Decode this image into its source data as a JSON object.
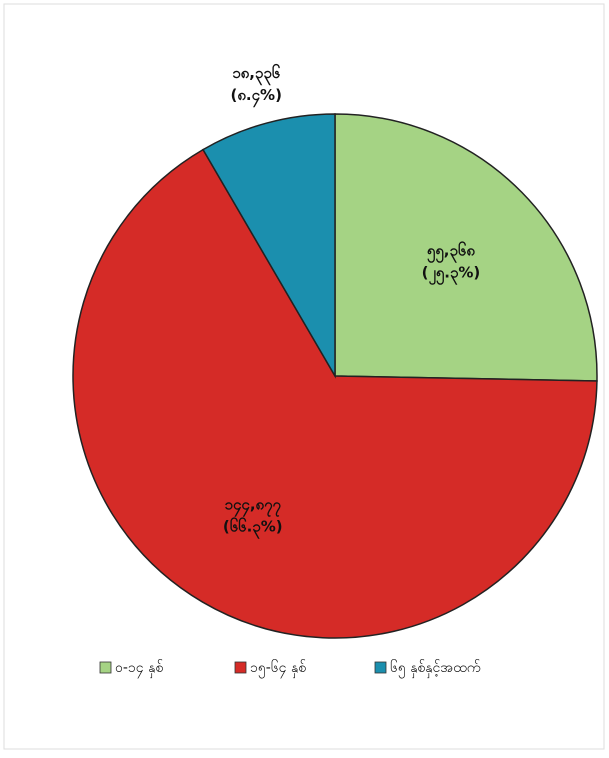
{
  "chart_data": {
    "type": "pie",
    "categories": [
      "၀-၁၄ နှစ်",
      "၁၅-၆၄ နှစ်",
      "၆၅ နှစ်နှင့်အထက်"
    ],
    "values": [
      25.3,
      66.3,
      8.4
    ],
    "value_labels": [
      "(၂၅.၃%)",
      "(၆၆.၃%)",
      "(၈.၄%)"
    ],
    "count_labels": [
      "၅၅,၃၆၈",
      "၁၄၄,၈၇၇",
      "၁၈,၃၃၆"
    ],
    "colors": [
      "#a5d384",
      "#d52b27",
      "#1b8fae"
    ],
    "legend": "bottom"
  }
}
